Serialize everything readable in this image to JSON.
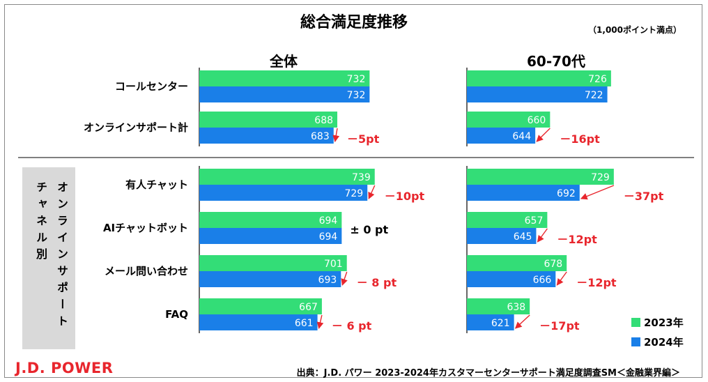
{
  "title": "総合満足度推移",
  "unit_note": "（1,000ポイント満点）",
  "side_label": {
    "line1": "オンラインサポート",
    "line2": "チャネル別"
  },
  "footer": {
    "logo": "J.D. POWER",
    "source": "出典：J.D. パワー 2023-2024年カスタマーセンターサポート満足度調査SM＜金融業界編＞"
  },
  "legend": [
    {
      "label": "2023年",
      "color": "#33dd77"
    },
    {
      "label": "2024年",
      "color": "#1a7fe8"
    }
  ],
  "colors": {
    "y2023": "#33dd77",
    "y2024": "#1a7fe8",
    "diff": "#e8262d"
  },
  "chart_data": [
    {
      "type": "bar",
      "orientation": "horizontal",
      "title": "全体",
      "categories": [
        "コールセンター",
        "オンラインサポート計",
        "有人チャット",
        "AIチャットボット",
        "メール問い合わせ",
        "FAQ"
      ],
      "series": [
        {
          "name": "2023年",
          "values": [
            732,
            688,
            739,
            694,
            701,
            667
          ]
        },
        {
          "name": "2024年",
          "values": [
            732,
            683,
            729,
            694,
            693,
            661
          ]
        }
      ],
      "diff_labels": [
        "",
        "－5pt",
        "－10pt",
        "± 0 pt",
        "－ 8 pt",
        "－ 6 pt"
      ],
      "xlim": [
        500,
        800
      ]
    },
    {
      "type": "bar",
      "orientation": "horizontal",
      "title": "60-70代",
      "categories": [
        "コールセンター",
        "オンラインサポート計",
        "有人チャット",
        "AIチャットボット",
        "メール問い合わせ",
        "FAQ"
      ],
      "series": [
        {
          "name": "2023年",
          "values": [
            726,
            660,
            729,
            657,
            678,
            638
          ]
        },
        {
          "name": "2024年",
          "values": [
            722,
            644,
            692,
            645,
            666,
            621
          ]
        }
      ],
      "diff_labels": [
        "",
        "－16pt",
        "－37pt",
        "－12pt",
        "－12pt",
        "－17pt"
      ],
      "xlim": [
        570,
        800
      ]
    }
  ]
}
